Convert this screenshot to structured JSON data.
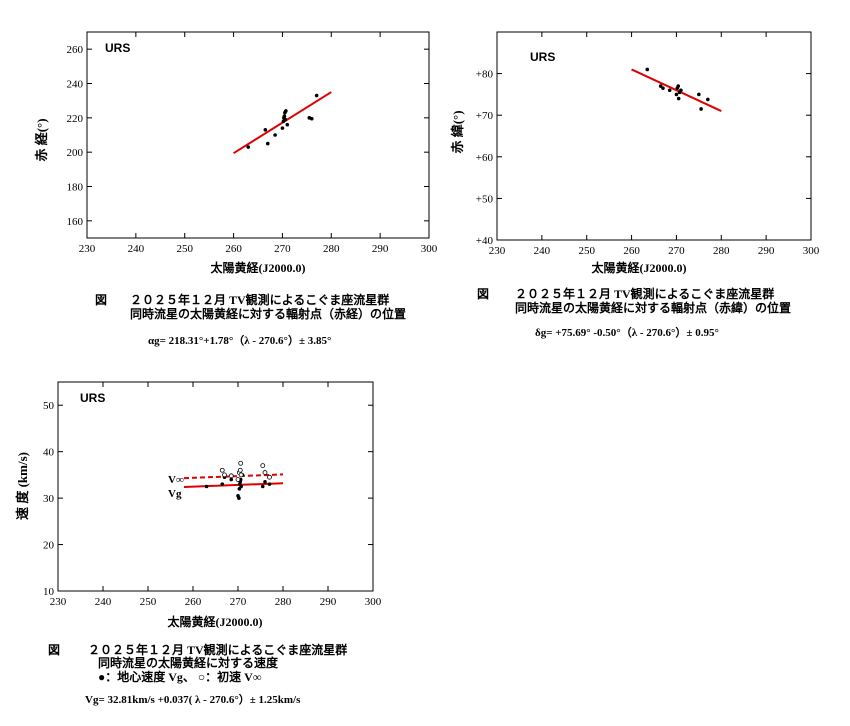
{
  "chart_data": [
    {
      "type": "scatter",
      "panel_tag": "URS",
      "xlabel": "太陽黄経(J2000.0)",
      "ylabel": "赤 経(°)",
      "xlim": [
        230,
        300
      ],
      "ylim": [
        150,
        270
      ],
      "xticks": [
        "230",
        "240",
        "250",
        "260",
        "270",
        "280",
        "290",
        "300"
      ],
      "yticks": [
        "160",
        "180",
        "200",
        "220",
        "240",
        "260"
      ],
      "points": [
        [
          263.0,
          203.0
        ],
        [
          266.5,
          213.0
        ],
        [
          267.0,
          205.0
        ],
        [
          268.5,
          210.0
        ],
        [
          270.0,
          214.0
        ],
        [
          270.2,
          218.0
        ],
        [
          270.3,
          220.0
        ],
        [
          270.4,
          221.0
        ],
        [
          270.5,
          223.0
        ],
        [
          270.6,
          219.0
        ],
        [
          270.7,
          224.0
        ],
        [
          271.0,
          216.0
        ],
        [
          275.5,
          220.0
        ],
        [
          276.0,
          219.5
        ],
        [
          277.0,
          233.0
        ]
      ],
      "fit": {
        "x": [
          260,
          280
        ],
        "y": [
          199.4,
          235.0
        ],
        "color": "#e00000"
      },
      "caption_label": "図",
      "caption_line1": "２０２５年１２月 TV観測によるこぐま座流星群",
      "caption_line2": "同時流星の太陽黄経に対する輻射点（赤経）の位置",
      "formula": "αg= 218.31°+1.78°（λ - 270.6°）± 3.85°"
    },
    {
      "type": "scatter",
      "panel_tag": "URS",
      "xlabel": "太陽黄経(J2000.0)",
      "ylabel": "赤 緯(°)",
      "xlim": [
        230,
        300
      ],
      "ylim": [
        40,
        90
      ],
      "xticks": [
        "230",
        "240",
        "250",
        "260",
        "270",
        "280",
        "290",
        "300"
      ],
      "yticks": [
        "+40",
        "+50",
        "+60",
        "+70",
        "+80"
      ],
      "points": [
        [
          263.5,
          81.0
        ],
        [
          266.5,
          77.0
        ],
        [
          267.0,
          76.5
        ],
        [
          268.5,
          76.0
        ],
        [
          270.0,
          75.0
        ],
        [
          270.2,
          76.5
        ],
        [
          270.4,
          77.0
        ],
        [
          270.5,
          74.0
        ],
        [
          270.7,
          75.5
        ],
        [
          271.0,
          76.0
        ],
        [
          275.0,
          75.0
        ],
        [
          275.5,
          71.5
        ],
        [
          277.0,
          73.8
        ]
      ],
      "fit": {
        "x": [
          260,
          280
        ],
        "y": [
          81.0,
          71.0
        ],
        "color": "#e00000"
      },
      "caption_label": "図",
      "caption_line1": "２０２５年１２月 TV観測によるこぐま座流星群",
      "caption_line2": "同時流星の太陽黄経に対する輻射点（赤緯）の位置",
      "formula": "δg= +75.69° -0.50°（λ - 270.6°）± 0.95°"
    },
    {
      "type": "scatter",
      "panel_tag": "URS",
      "xlabel": "太陽黄経(J2000.0)",
      "ylabel": "速 度 (km/s)",
      "xlim": [
        230,
        300
      ],
      "ylim": [
        10,
        55
      ],
      "xticks": [
        "230",
        "240",
        "250",
        "260",
        "270",
        "280",
        "290",
        "300"
      ],
      "yticks": [
        "10",
        "20",
        "30",
        "40",
        "50"
      ],
      "series": [
        {
          "name": "Vg",
          "marker": "filled",
          "points": [
            [
              263.0,
              32.5
            ],
            [
              266.5,
              33.0
            ],
            [
              267.0,
              34.5
            ],
            [
              268.5,
              34.0
            ],
            [
              270.0,
              30.5
            ],
            [
              270.2,
              30.0
            ],
            [
              270.3,
              32.0
            ],
            [
              270.4,
              33.0
            ],
            [
              270.5,
              33.5
            ],
            [
              270.6,
              34.0
            ],
            [
              270.7,
              32.5
            ],
            [
              271.0,
              35.0
            ],
            [
              275.5,
              32.5
            ],
            [
              276.0,
              33.5
            ],
            [
              277.0,
              33.0
            ]
          ]
        },
        {
          "name": "V∞",
          "marker": "open",
          "points": [
            [
              266.5,
              36.0
            ],
            [
              267.0,
              35.0
            ],
            [
              268.5,
              34.8
            ],
            [
              270.0,
              34.0
            ],
            [
              270.3,
              35.5
            ],
            [
              270.5,
              36.0
            ],
            [
              270.6,
              37.5
            ],
            [
              270.7,
              35.0
            ],
            [
              275.5,
              37.0
            ],
            [
              276.0,
              35.5
            ],
            [
              277.0,
              34.5
            ]
          ]
        }
      ],
      "fits": [
        {
          "name": "V∞",
          "x": [
            258,
            280
          ],
          "y": [
            34.3,
            35.1
          ],
          "color": "#e00000",
          "dash": true
        },
        {
          "name": "Vg",
          "x": [
            258,
            280
          ],
          "y": [
            32.4,
            33.2
          ],
          "color": "#e00000",
          "dash": false
        }
      ],
      "caption_label": "図",
      "caption_line1": "２０２５年１２月 TV観測によるこぐま座流星群",
      "caption_line2": "同時流星の太陽黄経に対する速度",
      "legend_line": "●：地心速度 Vg、 ○：初速 V∞",
      "formula": "Vg= 32.81km/s +0.037( λ - 270.6°）± 1.25km/s"
    }
  ]
}
